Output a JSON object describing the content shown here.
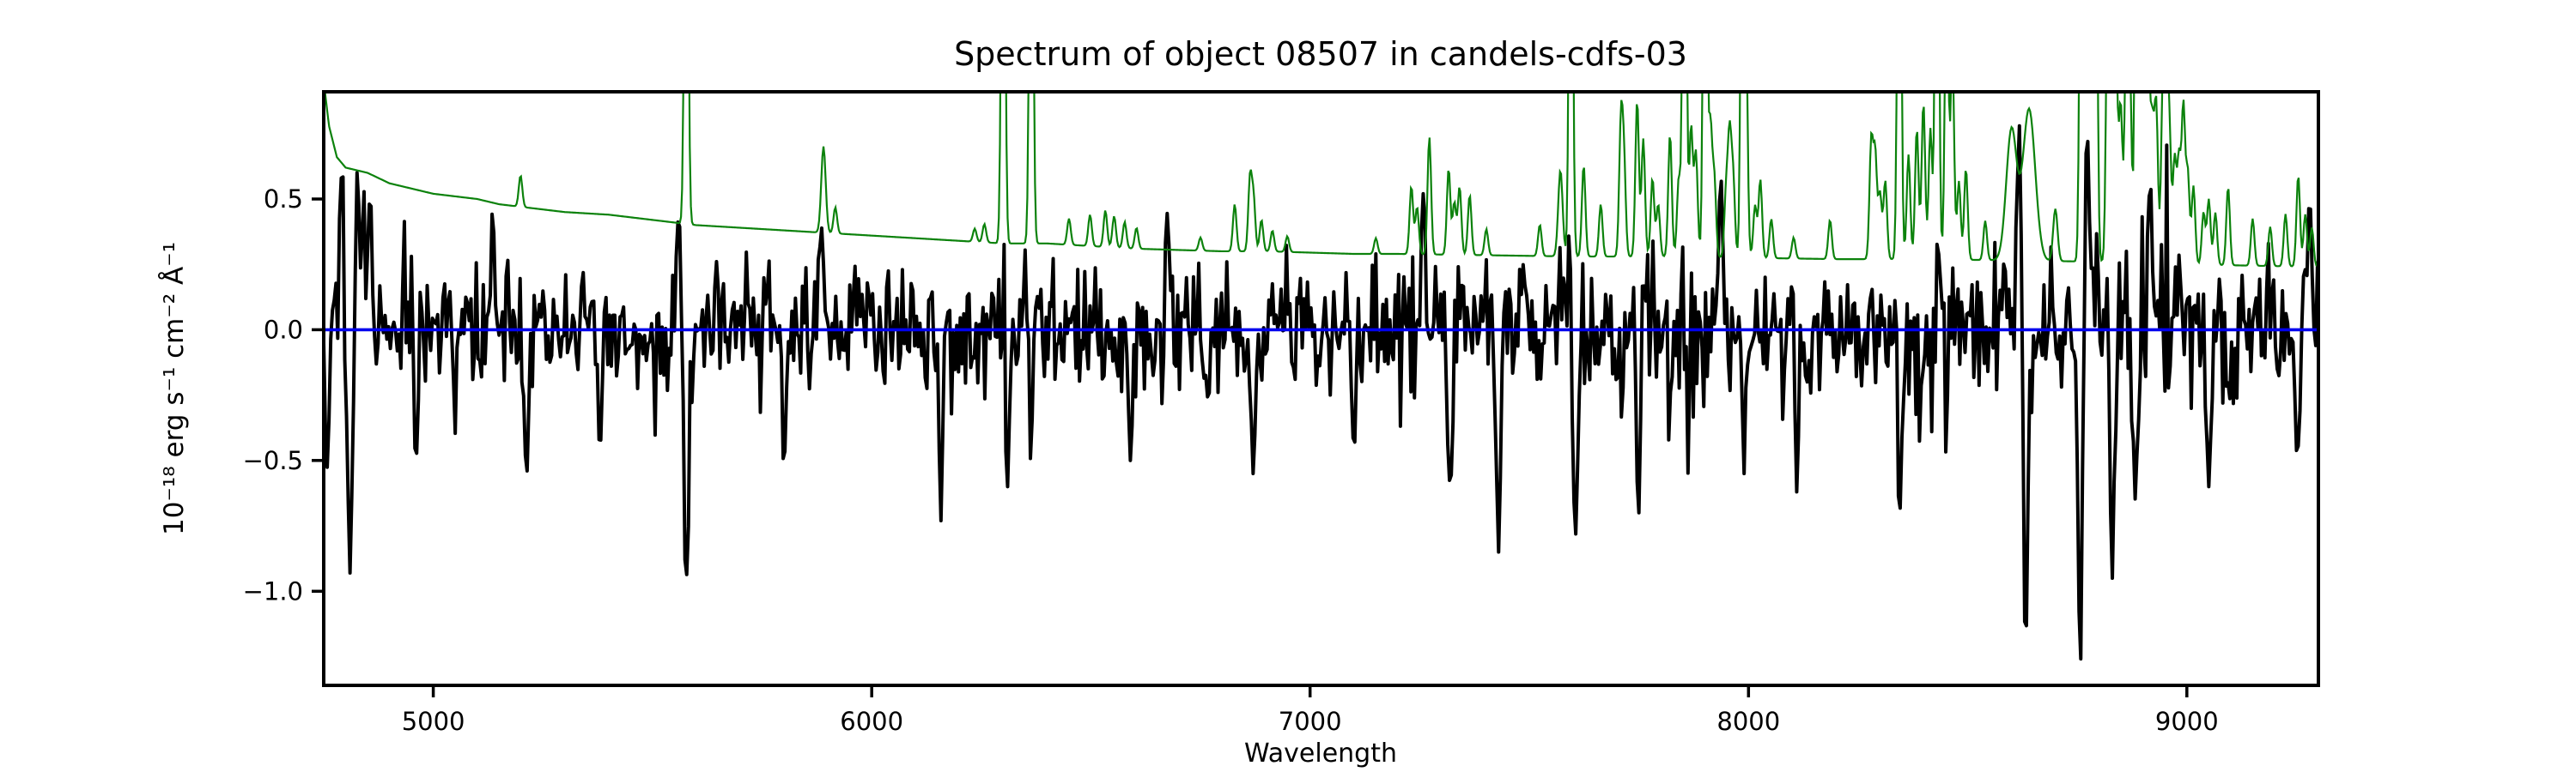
{
  "figure": {
    "background": "#ffffff"
  },
  "chart_data": {
    "type": "line",
    "title": "Spectrum of object 08507 in candels-cdfs-03",
    "xlabel": "Wavelength",
    "ylabel": "10⁻¹⁸ erg s⁻¹ cm⁻² Å⁻¹",
    "xlim": [
      4750,
      9300
    ],
    "ylim": [
      -1.36,
      0.91
    ],
    "x_ticks": [
      5000,
      6000,
      7000,
      8000,
      9000
    ],
    "x_tick_labels": [
      "5000",
      "6000",
      "7000",
      "8000",
      "9000"
    ],
    "y_ticks": [
      0.5,
      0.0,
      -0.5,
      -1.0
    ],
    "y_tick_labels": [
      "0.5",
      "0.0",
      "−0.5",
      "−1.0"
    ],
    "grid": false,
    "legend": null,
    "series": [
      {
        "name": "object-flux",
        "description": "black noisy object spectrum fluctuating about zero",
        "color": "#000000",
        "linewidth": 4,
        "sample_step_angstrom": 4,
        "noise": {
          "seed": 8507,
          "sigma_base": 0.125,
          "sigma_edge": 0.11,
          "edge_scale": 130,
          "sigma_sky": 0.13,
          "sky_cap": 1.6,
          "feature_sigma": 5
        },
        "feature_peaks": [
          [
            4790,
            0.58
          ],
          [
            4827,
            0.61
          ],
          [
            4856,
            0.52
          ],
          [
            5135,
            0.45
          ],
          [
            5560,
            0.44
          ],
          [
            5885,
            0.4
          ],
          [
            6161,
            0.47
          ],
          [
            6675,
            0.45
          ],
          [
            7258,
            0.52
          ],
          [
            7755,
            0.62
          ],
          [
            7937,
            0.58
          ],
          [
            8105,
            0.5
          ],
          [
            8618,
            0.82
          ],
          [
            8772,
            0.8
          ],
          [
            8916,
            0.57
          ],
          [
            9280,
            0.5
          ]
        ],
        "feature_dips": [
          [
            4757,
            -0.54
          ],
          [
            4810,
            -0.93
          ],
          [
            4960,
            -0.5
          ],
          [
            5213,
            -0.55
          ],
          [
            5380,
            -0.45
          ],
          [
            5577,
            -0.95
          ],
          [
            5800,
            -0.52
          ],
          [
            6158,
            -0.73
          ],
          [
            6310,
            -0.6
          ],
          [
            6590,
            -0.5
          ],
          [
            6870,
            -0.55
          ],
          [
            7100,
            -0.45
          ],
          [
            7320,
            -0.6
          ],
          [
            7430,
            -0.85
          ],
          [
            7605,
            -0.8
          ],
          [
            7750,
            -0.7
          ],
          [
            7990,
            -0.55
          ],
          [
            8110,
            -0.62
          ],
          [
            8345,
            -0.7
          ],
          [
            8632,
            -1.21
          ],
          [
            8757,
            -1.29
          ],
          [
            8830,
            -0.95
          ],
          [
            8883,
            -0.66
          ],
          [
            9050,
            -0.6
          ],
          [
            9251,
            -0.47
          ]
        ]
      },
      {
        "name": "sky-error",
        "description": "green error/sky spectrum: declining continuum plus sky emission lines, clipped at the axes top",
        "color": "#0c820c",
        "linewidth": 2.2,
        "sample_step_angstrom": 2.5,
        "continuum": [
          [
            4750,
            0.95
          ],
          [
            4762,
            0.78
          ],
          [
            4780,
            0.66
          ],
          [
            4800,
            0.62
          ],
          [
            4850,
            0.6
          ],
          [
            4900,
            0.56
          ],
          [
            4950,
            0.54
          ],
          [
            5000,
            0.52
          ],
          [
            5050,
            0.51
          ],
          [
            5100,
            0.5
          ],
          [
            5150,
            0.48
          ],
          [
            5200,
            0.47
          ],
          [
            5300,
            0.45
          ],
          [
            5400,
            0.44
          ],
          [
            5500,
            0.42
          ],
          [
            5600,
            0.4
          ],
          [
            5700,
            0.39
          ],
          [
            5800,
            0.38
          ],
          [
            5900,
            0.37
          ],
          [
            6000,
            0.36
          ],
          [
            6100,
            0.35
          ],
          [
            6200,
            0.34
          ],
          [
            6300,
            0.33
          ],
          [
            6400,
            0.33
          ],
          [
            6500,
            0.32
          ],
          [
            6600,
            0.31
          ],
          [
            6700,
            0.305
          ],
          [
            6800,
            0.3
          ],
          [
            6900,
            0.3
          ],
          [
            7000,
            0.295
          ],
          [
            7100,
            0.29
          ],
          [
            7200,
            0.29
          ],
          [
            7400,
            0.285
          ],
          [
            7600,
            0.28
          ],
          [
            7800,
            0.28
          ],
          [
            8000,
            0.275
          ],
          [
            8200,
            0.27
          ],
          [
            8400,
            0.27
          ],
          [
            8600,
            0.265
          ],
          [
            8800,
            0.26
          ],
          [
            9000,
            0.25
          ],
          [
            9150,
            0.245
          ],
          [
            9300,
            0.24
          ]
        ],
        "emission_lines": [
          [
            5199,
            0.12,
            4
          ],
          [
            5577,
            2.2,
            4
          ],
          [
            5890,
            0.33,
            5
          ],
          [
            5917,
            0.1,
            4
          ],
          [
            6235,
            0.05,
            4
          ],
          [
            6257,
            0.07,
            4
          ],
          [
            6300,
            2.2,
            4
          ],
          [
            6364,
            2.2,
            4
          ],
          [
            6450,
            0.1,
            4
          ],
          [
            6498,
            0.12,
            4
          ],
          [
            6533,
            0.14,
            4
          ],
          [
            6553,
            0.12,
            4
          ],
          [
            6577,
            0.1,
            4
          ],
          [
            6604,
            0.08,
            4
          ],
          [
            6750,
            0.05,
            4
          ],
          [
            6828,
            0.18,
            4
          ],
          [
            6863,
            0.28,
            4
          ],
          [
            6871,
            0.2,
            4
          ],
          [
            6889,
            0.12,
            4
          ],
          [
            6914,
            0.08,
            4
          ],
          [
            6948,
            0.06,
            4
          ],
          [
            7150,
            0.06,
            4
          ],
          [
            7231,
            0.26,
            4
          ],
          [
            7244,
            0.18,
            4
          ],
          [
            7272,
            0.45,
            4
          ],
          [
            7316,
            0.33,
            4
          ],
          [
            7329,
            0.2,
            4
          ],
          [
            7341,
            0.26,
            4
          ],
          [
            7364,
            0.23,
            4
          ],
          [
            7402,
            0.1,
            4
          ],
          [
            7524,
            0.12,
            4
          ],
          [
            7571,
            0.33,
            5
          ],
          [
            7595,
            2.2,
            4
          ],
          [
            7624,
            0.35,
            4
          ],
          [
            7663,
            0.2,
            4
          ],
          [
            7709,
            0.5,
            4
          ],
          [
            7716,
            0.35,
            4
          ],
          [
            7746,
            0.6,
            4
          ],
          [
            7760,
            0.45,
            4
          ],
          [
            7781,
            0.3,
            4
          ],
          [
            7794,
            0.2,
            4
          ],
          [
            7821,
            0.47,
            4
          ],
          [
            7841,
            0.3,
            4
          ],
          [
            7854,
            2.2,
            4
          ],
          [
            7869,
            0.5,
            4
          ],
          [
            7880,
            0.4,
            4
          ],
          [
            7901,
            2.2,
            4
          ],
          [
            7913,
            0.5,
            4
          ],
          [
            7922,
            0.3,
            4
          ],
          [
            7949,
            0.25,
            4
          ],
          [
            7957,
            0.45,
            4
          ],
          [
            7965,
            0.3,
            4
          ],
          [
            7987,
            2.2,
            4
          ],
          [
            7994,
            0.8,
            4
          ],
          [
            8015,
            0.2,
            4
          ],
          [
            8027,
            0.3,
            4
          ],
          [
            8052,
            0.15,
            4
          ],
          [
            8103,
            0.08,
            4
          ],
          [
            8186,
            0.15,
            4
          ],
          [
            8280,
            0.45,
            4
          ],
          [
            8289,
            0.4,
            4
          ],
          [
            8300,
            0.25,
            4
          ],
          [
            8312,
            0.3,
            4
          ],
          [
            8344,
            2.2,
            4
          ],
          [
            8365,
            0.4,
            4
          ],
          [
            8384,
            0.5,
            4
          ],
          [
            8399,
            0.6,
            4
          ],
          [
            8415,
            0.5,
            4
          ],
          [
            8430,
            2.2,
            4
          ],
          [
            8452,
            1.2,
            4
          ],
          [
            8465,
            0.8,
            4
          ],
          [
            8480,
            0.3,
            4
          ],
          [
            8496,
            0.35,
            4
          ],
          [
            8540,
            0.15,
            4
          ],
          [
            8600,
            0.5,
            12
          ],
          [
            8640,
            0.58,
            14
          ],
          [
            8700,
            0.2,
            5
          ],
          [
            8760,
            2.2,
            4
          ],
          [
            8767,
            1.5,
            4
          ],
          [
            8778,
            1.0,
            4
          ],
          [
            8791,
            2.2,
            4
          ],
          [
            8820,
            1.2,
            4
          ],
          [
            8829,
            2.2,
            4
          ],
          [
            8838,
            0.8,
            4
          ],
          [
            8849,
            0.6,
            4
          ],
          [
            8862,
            0.9,
            4
          ],
          [
            8870,
            0.7,
            4
          ],
          [
            8886,
            2.2,
            4
          ],
          [
            8897,
            0.8,
            4
          ],
          [
            8903,
            2.2,
            4
          ],
          [
            8912,
            0.7,
            4
          ],
          [
            8921,
            0.5,
            4
          ],
          [
            8930,
            0.6,
            4
          ],
          [
            8945,
            0.6,
            4
          ],
          [
            8952,
            0.8,
            4
          ],
          [
            8960,
            0.5,
            4
          ],
          [
            8972,
            0.4,
            4
          ],
          [
            8982,
            0.4,
            4
          ],
          [
            8992,
            0.6,
            4
          ],
          [
            9002,
            0.35,
            4
          ],
          [
            9015,
            0.3,
            4
          ],
          [
            9038,
            0.2,
            4
          ],
          [
            9050,
            0.25,
            4
          ],
          [
            9065,
            0.2,
            4
          ],
          [
            9094,
            0.3,
            4
          ],
          [
            9150,
            0.18,
            4
          ],
          [
            9190,
            0.15,
            4
          ],
          [
            9225,
            0.2,
            4
          ],
          [
            9254,
            0.35,
            4
          ],
          [
            9270,
            0.2,
            4
          ],
          [
            9285,
            0.15,
            4
          ],
          [
            9310,
            0.3,
            4
          ]
        ]
      },
      {
        "name": "zero-level",
        "description": "horizontal blue reference line at flux = 0",
        "type": "hline",
        "y": 0.0,
        "color": "#0202ee",
        "linewidth": 3.6
      }
    ]
  }
}
